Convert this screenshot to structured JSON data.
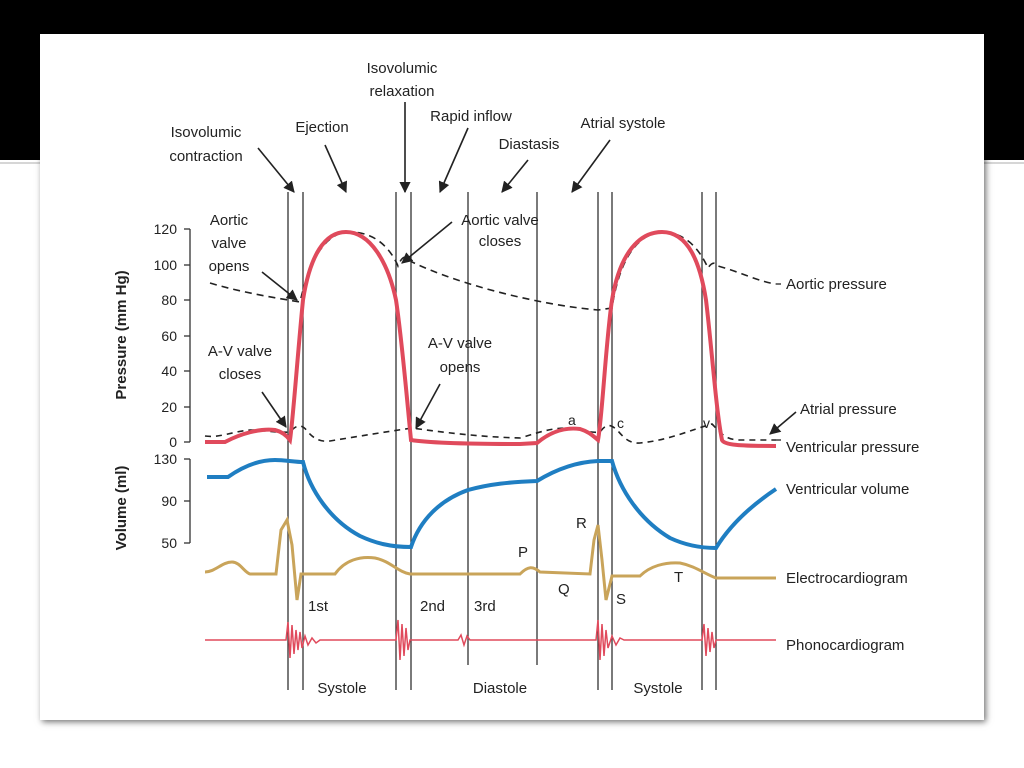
{
  "diagram": {
    "phases": {
      "isovolumic_contraction": [
        "Isovolumic",
        "contraction"
      ],
      "ejection": "Ejection",
      "isovolumic_relaxation": [
        "Isovolumic",
        "relaxation"
      ],
      "rapid_inflow": "Rapid inflow",
      "diastasis": "Diastasis",
      "atrial_systole": "Atrial systole"
    },
    "events": {
      "aortic_valve_opens": [
        "Aortic",
        "valve",
        "opens"
      ],
      "aortic_valve_closes": [
        "Aortic valve",
        "closes"
      ],
      "av_valve_closes": [
        "A-V valve",
        "closes"
      ],
      "av_valve_opens": [
        "A-V valve",
        "opens"
      ]
    },
    "pressure_axis": {
      "title": "Pressure (mm Hg)",
      "ticks": [
        "120",
        "100",
        "80",
        "60",
        "40",
        "20",
        "0"
      ]
    },
    "volume_axis": {
      "title": "Volume (ml)",
      "ticks": [
        "130",
        "90",
        "50"
      ]
    },
    "traces": {
      "aortic_pressure": "Aortic pressure",
      "atrial_pressure": "Atrial pressure",
      "ventricular_pressure": "Ventricular pressure",
      "ventricular_volume": "Ventricular volume",
      "electrocardiogram": "Electrocardiogram",
      "phonocardiogram": "Phonocardiogram"
    },
    "wave_labels": {
      "a": "a",
      "c": "c",
      "v": "v",
      "P": "P",
      "Q": "Q",
      "R": "R",
      "S": "S",
      "T": "T"
    },
    "heart_sounds": [
      "1st",
      "2nd",
      "3rd"
    ],
    "cycle_phases": [
      "Systole",
      "Diastole",
      "Systole"
    ]
  },
  "colors": {
    "ventricular_pressure": "#e04a5c",
    "ventricular_volume": "#1f7ec2",
    "electrocardiogram": "#c9a45a",
    "phonocardiogram": "#e04a5c",
    "dashed": "#222222"
  }
}
